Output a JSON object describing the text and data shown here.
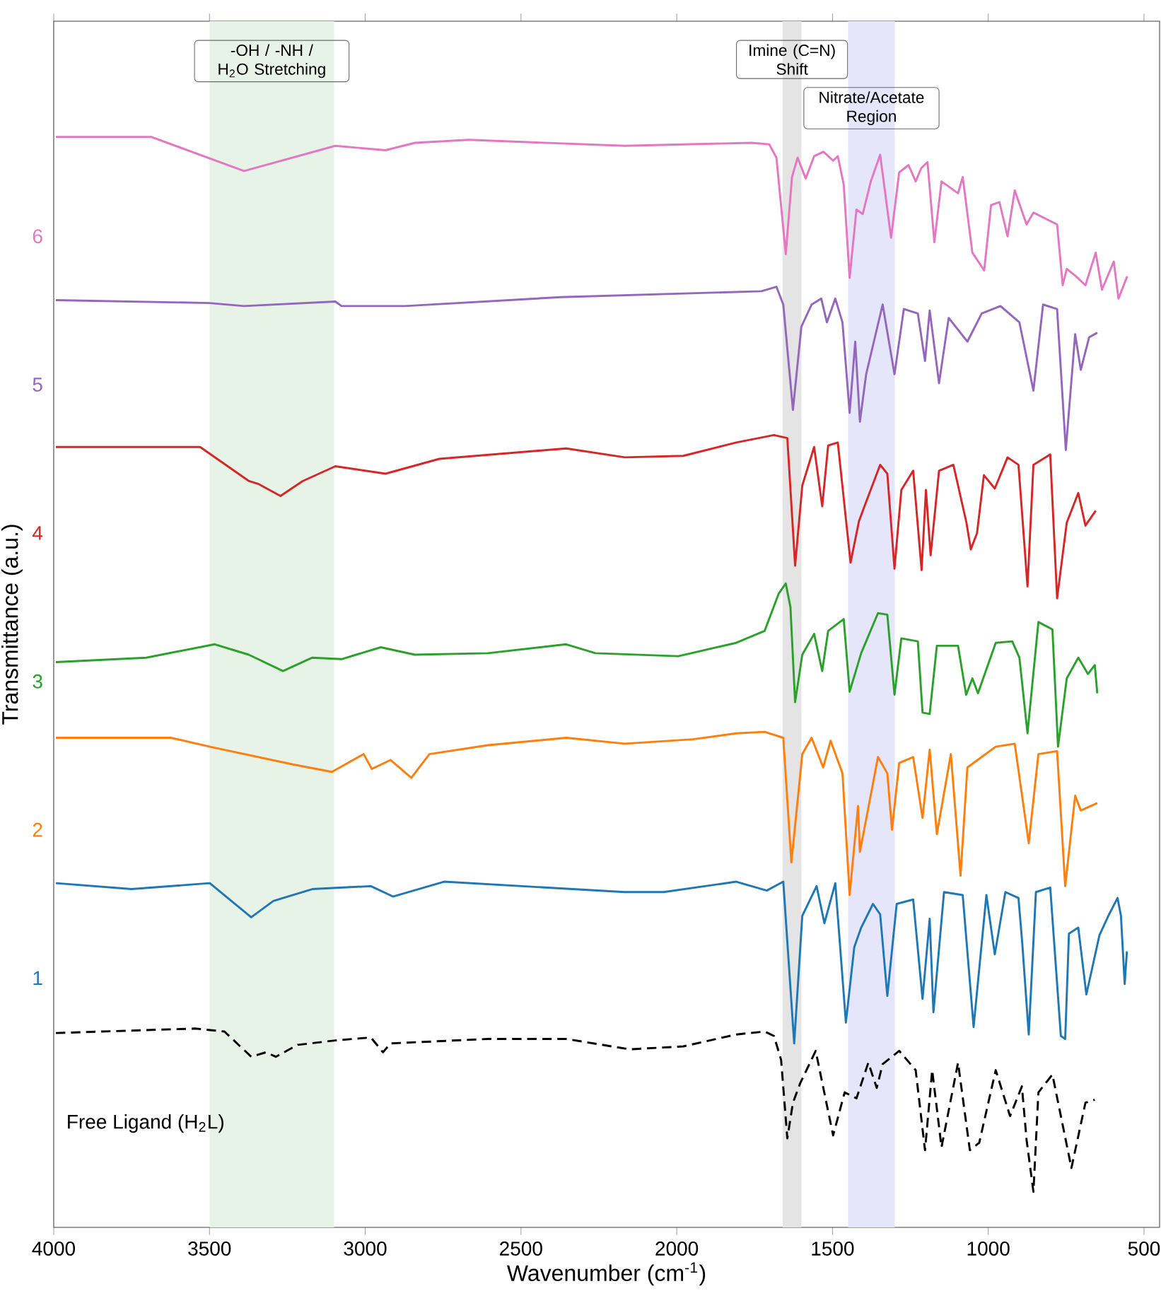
{
  "chart_data": {
    "type": "line",
    "xlabel": "Wavenumber (cm$^{-1}$)",
    "ylabel": "Transmittance (a.u.)",
    "xlim": [
      4000,
      450
    ],
    "xticks": [
      4000,
      3500,
      3000,
      2500,
      2000,
      1500,
      1000,
      500
    ],
    "ylim": [
      -0.68,
      7.45
    ],
    "yticks": [
      1,
      2,
      3,
      4,
      5,
      6
    ],
    "marker": "none",
    "grid": false,
    "bands": [
      {
        "axis": "x",
        "from": 3500,
        "to": 3100,
        "label": "-OH / -NH / H$_{2}$O Stretching",
        "color": "#e8f3e8"
      },
      {
        "axis": "x",
        "from": 1660,
        "to": 1600,
        "label": "Imine (C=N) Shift",
        "color": "#e4e4e4"
      },
      {
        "axis": "x",
        "from": 1450,
        "to": 1300,
        "label": "Nitrate/Acetate Region",
        "color": "#e6e6fb"
      }
    ],
    "series": [
      {
        "name": "Free Ligand (H$_{2}$L)",
        "color": "#000000",
        "line_style": "dashed",
        "x": [
          3993,
          3546,
          3452,
          3366,
          3319,
          3287,
          3217,
          3096,
          2982,
          2943,
          2919,
          2606,
          2355,
          2151,
          1979,
          1809,
          1718,
          1688,
          1665,
          1645,
          1627,
          1604,
          1554,
          1498,
          1461,
          1423,
          1385,
          1358,
          1339,
          1286,
          1233,
          1203,
          1180,
          1150,
          1097,
          1059,
          1029,
          976,
          930,
          892,
          877,
          855,
          839,
          794,
          733,
          688,
          658
        ],
        "values": [
          0.63,
          0.66,
          0.64,
          0.47,
          0.5,
          0.47,
          0.55,
          0.58,
          0.6,
          0.5,
          0.56,
          0.59,
          0.59,
          0.52,
          0.54,
          0.62,
          0.64,
          0.61,
          0.45,
          -0.08,
          0.16,
          0.29,
          0.51,
          -0.06,
          0.23,
          0.19,
          0.43,
          0.26,
          0.42,
          0.51,
          0.38,
          -0.16,
          0.38,
          -0.14,
          0.43,
          -0.16,
          -0.11,
          0.38,
          0.07,
          0.27,
          -0.09,
          -0.44,
          0.23,
          0.35,
          -0.28,
          0.16,
          0.18
        ]
      },
      {
        "color": "#1f77b4",
        "line_style": "solid",
        "x": [
          3993,
          3750,
          3499,
          3366,
          3295,
          3170,
          2982,
          2911,
          2747,
          2167,
          2042,
          1809,
          1711,
          1658,
          1623,
          1597,
          1551,
          1526,
          1491,
          1457,
          1430,
          1408,
          1370,
          1347,
          1324,
          1294,
          1241,
          1211,
          1188,
          1176,
          1142,
          1082,
          1047,
          1006,
          979,
          945,
          903,
          891,
          870,
          847,
          801,
          767,
          753,
          741,
          711,
          685,
          643,
          612,
          585,
          574,
          562,
          555
        ],
        "values": [
          1.64,
          1.6,
          1.64,
          1.41,
          1.52,
          1.6,
          1.62,
          1.55,
          1.65,
          1.58,
          1.58,
          1.65,
          1.59,
          1.65,
          0.56,
          1.42,
          1.62,
          1.37,
          1.64,
          0.7,
          1.21,
          1.34,
          1.5,
          1.43,
          0.88,
          1.5,
          1.53,
          0.86,
          1.4,
          0.77,
          1.58,
          1.56,
          0.67,
          1.56,
          1.16,
          1.58,
          1.54,
          1.24,
          0.62,
          1.58,
          1.61,
          0.61,
          0.59,
          1.3,
          1.34,
          0.89,
          1.29,
          1.43,
          1.54,
          1.42,
          0.96,
          1.18
        ]
      },
      {
        "color": "#ff7f0e",
        "line_style": "solid",
        "x": [
          3993,
          3624,
          3499,
          3232,
          3107,
          3005,
          2979,
          2919,
          2852,
          2794,
          2606,
          2355,
          2167,
          1948,
          1809,
          1718,
          1658,
          1632,
          1597,
          1567,
          1530,
          1506,
          1468,
          1445,
          1418,
          1412,
          1392,
          1354,
          1324,
          1309,
          1286,
          1241,
          1211,
          1188,
          1165,
          1120,
          1089,
          1067,
          976,
          915,
          870,
          839,
          779,
          753,
          721,
          703,
          650
        ],
        "values": [
          2.62,
          2.62,
          2.56,
          2.44,
          2.39,
          2.51,
          2.41,
          2.47,
          2.35,
          2.51,
          2.57,
          2.62,
          2.58,
          2.61,
          2.65,
          2.66,
          2.62,
          1.78,
          2.51,
          2.62,
          2.42,
          2.6,
          2.38,
          1.56,
          2.16,
          1.85,
          2.07,
          2.49,
          2.38,
          2.0,
          2.45,
          2.49,
          2.08,
          2.54,
          1.97,
          2.51,
          1.69,
          2.42,
          2.56,
          2.58,
          1.91,
          2.51,
          2.53,
          1.62,
          2.23,
          2.13,
          2.18
        ]
      },
      {
        "color": "#2ca02c",
        "line_style": "solid",
        "x": [
          3993,
          3703,
          3483,
          3374,
          3264,
          3170,
          3076,
          2950,
          2841,
          2606,
          2355,
          2261,
          1995,
          1809,
          1718,
          1673,
          1650,
          1635,
          1620,
          1597,
          1559,
          1533,
          1514,
          1464,
          1445,
          1408,
          1354,
          1324,
          1301,
          1279,
          1226,
          1211,
          1188,
          1165,
          1097,
          1071,
          1051,
          1033,
          976,
          923,
          900,
          874,
          839,
          794,
          776,
          748,
          711,
          680,
          658,
          650
        ],
        "values": [
          3.13,
          3.16,
          3.25,
          3.18,
          3.07,
          3.16,
          3.15,
          3.23,
          3.18,
          3.19,
          3.25,
          3.19,
          3.17,
          3.26,
          3.34,
          3.59,
          3.66,
          3.5,
          2.86,
          3.18,
          3.32,
          3.07,
          3.34,
          3.42,
          2.93,
          3.19,
          3.46,
          3.45,
          2.91,
          3.29,
          3.27,
          2.79,
          2.78,
          3.24,
          3.24,
          2.91,
          3.02,
          2.92,
          3.26,
          3.27,
          3.16,
          2.65,
          3.4,
          3.35,
          2.56,
          3.02,
          3.16,
          3.05,
          3.11,
          2.92
        ]
      },
      {
        "color": "#d62728",
        "line_style": "solid",
        "x": [
          3993,
          3530,
          3373,
          3342,
          3272,
          3201,
          3096,
          2935,
          2762,
          2355,
          2167,
          1979,
          1809,
          1688,
          1645,
          1620,
          1597,
          1559,
          1533,
          1514,
          1483,
          1442,
          1415,
          1392,
          1347,
          1324,
          1301,
          1279,
          1241,
          1214,
          1200,
          1185,
          1158,
          1112,
          1070,
          1056,
          1036,
          1014,
          979,
          938,
          903,
          874,
          855,
          801,
          779,
          748,
          711,
          688,
          655
        ],
        "values": [
          4.58,
          4.58,
          4.35,
          4.33,
          4.25,
          4.35,
          4.45,
          4.4,
          4.5,
          4.57,
          4.51,
          4.52,
          4.61,
          4.66,
          4.64,
          3.78,
          4.32,
          4.58,
          4.18,
          4.59,
          4.61,
          3.8,
          4.08,
          4.21,
          4.46,
          4.4,
          3.76,
          4.29,
          4.42,
          3.75,
          4.29,
          3.85,
          4.42,
          4.46,
          4.07,
          3.89,
          4.0,
          4.39,
          4.3,
          4.51,
          4.46,
          3.64,
          4.46,
          4.53,
          3.56,
          4.07,
          4.27,
          4.05,
          4.15
        ]
      },
      {
        "color": "#9467bd",
        "line_style": "solid",
        "x": [
          3993,
          3500,
          3389,
          3096,
          3076,
          2872,
          2371,
          1728,
          1680,
          1658,
          1627,
          1600,
          1567,
          1536,
          1518,
          1491,
          1468,
          1445,
          1427,
          1412,
          1392,
          1339,
          1301,
          1271,
          1226,
          1203,
          1188,
          1158,
          1127,
          1067,
          1021,
          961,
          900,
          855,
          824,
          779,
          751,
          721,
          703,
          676,
          650
        ],
        "values": [
          5.57,
          5.55,
          5.53,
          5.56,
          5.53,
          5.53,
          5.59,
          5.63,
          5.66,
          5.54,
          4.83,
          5.39,
          5.54,
          5.58,
          5.42,
          5.58,
          5.42,
          4.81,
          5.29,
          4.75,
          5.07,
          5.54,
          5.07,
          5.51,
          5.48,
          5.16,
          5.5,
          5.01,
          5.45,
          5.29,
          5.48,
          5.53,
          5.42,
          4.96,
          5.54,
          5.51,
          4.56,
          5.34,
          5.1,
          5.32,
          5.35
        ]
      },
      {
        "color": "#e377c2",
        "line_style": "solid",
        "x": [
          3993,
          3687,
          3389,
          3096,
          2935,
          2840,
          2668,
          2167,
          1760,
          1703,
          1680,
          1650,
          1630,
          1612,
          1586,
          1559,
          1529,
          1498,
          1483,
          1464,
          1445,
          1423,
          1403,
          1377,
          1347,
          1312,
          1286,
          1256,
          1233,
          1215,
          1195,
          1173,
          1150,
          1097,
          1082,
          1051,
          1013,
          991,
          964,
          938,
          915,
          877,
          855,
          779,
          761,
          748,
          718,
          688,
          655,
          635,
          597,
          582,
          554
        ],
        "values": [
          6.67,
          6.67,
          6.44,
          6.61,
          6.58,
          6.63,
          6.65,
          6.61,
          6.63,
          6.62,
          6.53,
          5.88,
          6.4,
          6.53,
          6.39,
          6.54,
          6.57,
          6.51,
          6.54,
          6.35,
          5.72,
          6.18,
          6.15,
          6.37,
          6.55,
          5.99,
          6.43,
          6.48,
          6.37,
          6.46,
          6.5,
          5.96,
          6.37,
          6.29,
          6.4,
          5.89,
          5.77,
          6.21,
          6.23,
          6.0,
          6.31,
          6.08,
          6.16,
          6.08,
          5.67,
          5.78,
          5.73,
          5.67,
          5.89,
          5.64,
          5.83,
          5.58,
          5.73
        ]
      }
    ]
  }
}
